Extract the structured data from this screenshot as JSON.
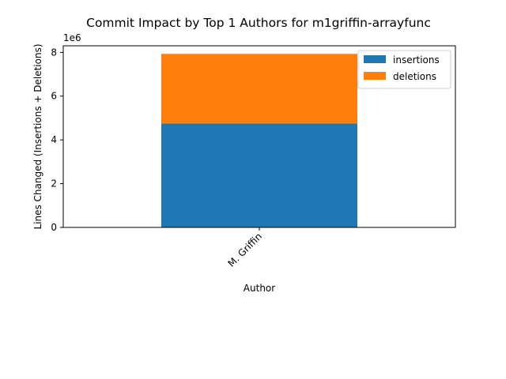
{
  "chart_data": {
    "type": "bar",
    "stacked": true,
    "title": "Commit Impact by Top 1 Authors for m1griffin-arrayfunc",
    "xlabel": "Author",
    "ylabel": "Lines Changed (Insertions + Deletions)",
    "y_scale_label": "1e6",
    "categories": [
      "M. Griffin"
    ],
    "series": [
      {
        "name": "insertions",
        "values": [
          4750000
        ],
        "color": "#1f77b4"
      },
      {
        "name": "deletions",
        "values": [
          3180000
        ],
        "color": "#ff7f0e"
      }
    ],
    "ylim": [
      0,
      8300000
    ],
    "yticks": [
      0,
      2000000,
      4000000,
      6000000,
      8000000
    ],
    "ytick_labels": [
      "0",
      "2",
      "4",
      "6",
      "8"
    ],
    "grid": false,
    "legend_position": "top-right"
  }
}
